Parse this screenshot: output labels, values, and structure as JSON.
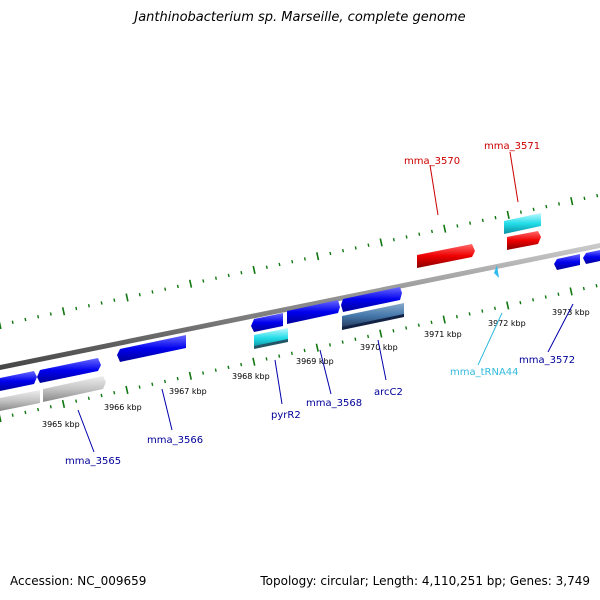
{
  "title": "Janthinobacterium sp. Marseille, complete genome",
  "footer": {
    "accession": "Accession: NC_009659",
    "summary": "Topology: circular; Length: 4,110,251 bp; Genes: 3,749"
  },
  "colors": {
    "forward_gene": "#0000ee",
    "trna": "#33ccee",
    "red_gene": "#dd0000",
    "grey_gene": "#bbbbbb",
    "steel_gene": "#4477aa",
    "tick": "#117711",
    "backbone": "#888888",
    "label_blue": "#000099",
    "label_red": "#cc0000",
    "label_cyan": "#33bbdd"
  },
  "kbp_labels": [
    "3965 kbp",
    "3966 kbp",
    "3967 kbp",
    "3968 kbp",
    "3969 kbp",
    "3970 kbp",
    "3971 kbp",
    "3972 kbp",
    "3973 kbp"
  ],
  "gene_labels": {
    "mma_3565": "mma_3565",
    "mma_3566": "mma_3566",
    "pyrR2": "pyrR2",
    "mma_3568": "mma_3568",
    "arcC2": "arcC2",
    "mma_tRNA44": "mma_tRNA44",
    "mma_3572": "mma_3572",
    "mma_3570": "mma_3570",
    "mma_3571": "mma_3571"
  }
}
